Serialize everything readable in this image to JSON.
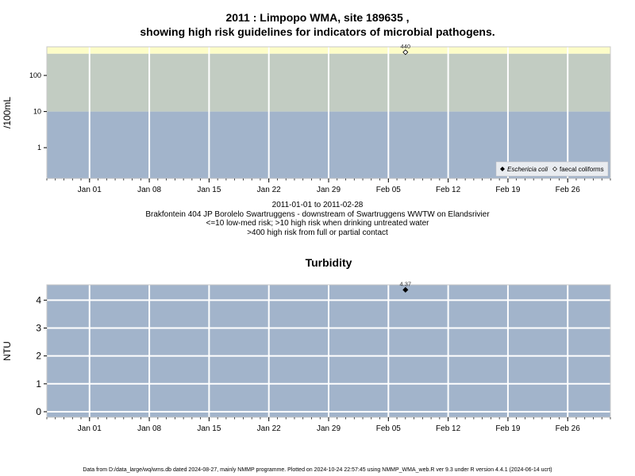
{
  "figure": {
    "title_line1": "2011 : Limpopo WMA, site 189635 ,",
    "title_line2": "showing high risk guidelines for indicators of microbial pathogens.",
    "subtitle_lines": [
      "2011-01-01 to 2011-02-28",
      "Brakfontein 404 JP Borolelo Swartruggens - downstream of Swartruggens WWTW on Elandsrivier",
      "<=10 low-med risk; >10 high risk when drinking untreated water",
      ">400 high risk from full or partial contact"
    ],
    "footer": "Data from D:/data_large/wq/wms.db dated 2024-08-27, mainly NMMP programme. Plotted on 2024-10-24 22:57:45 using NMMP_WMA_web.R ver 9.3 under R version 4.4.1 (2024-06-14 ucrt)"
  },
  "colors": {
    "low_risk_band": "#a2b4cb",
    "high_risk_band": "#c2ccc2",
    "contact_risk_band": "#fdfdc8",
    "turbidity_background": "#a2b4cb",
    "gridline": "#ffffff"
  },
  "chart_data": [
    {
      "type": "scatter",
      "title": "",
      "ylabel": "/100mL",
      "y_scale": "log",
      "ylim": [
        0.14,
        620
      ],
      "yticks": [
        1,
        10,
        100
      ],
      "ytick_labels": [
        "1",
        "10",
        "100"
      ],
      "xlim": [
        "2010-12-27",
        "2011-03-03"
      ],
      "xtick_dates": [
        "2011-01-01",
        "2011-01-08",
        "2011-01-15",
        "2011-01-22",
        "2011-01-29",
        "2011-02-05",
        "2011-02-12",
        "2011-02-19",
        "2011-02-26"
      ],
      "xtick_labels": [
        "Jan 01",
        "Jan 08",
        "Jan 15",
        "Jan 22",
        "Jan 29",
        "Feb 05",
        "Feb 12",
        "Feb 19",
        "Feb 26"
      ],
      "grid": true,
      "risk_bands": [
        {
          "from": 0.14,
          "to": 10,
          "color": "#a2b4cb"
        },
        {
          "from": 10,
          "to": 400,
          "color": "#c2ccc2"
        },
        {
          "from": 400,
          "to": 620,
          "color": "#fdfdc8"
        }
      ],
      "legend_position": "bottom-right",
      "series": [
        {
          "name": "Eschericia coli",
          "marker": "filled-diamond",
          "points": []
        },
        {
          "name": "faecal coliforms",
          "marker": "open-diamond",
          "points": [
            {
              "x": "2011-02-07",
              "y": 440,
              "label": "440"
            }
          ]
        }
      ]
    },
    {
      "type": "scatter",
      "title": "Turbidity",
      "ylabel": "NTU",
      "y_scale": "linear",
      "ylim": [
        -0.2,
        4.55
      ],
      "yticks": [
        0,
        1,
        2,
        3,
        4
      ],
      "ytick_labels": [
        "0",
        "1",
        "2",
        "3",
        "4"
      ],
      "xlim": [
        "2010-12-27",
        "2011-03-03"
      ],
      "xtick_dates": [
        "2011-01-01",
        "2011-01-08",
        "2011-01-15",
        "2011-01-22",
        "2011-01-29",
        "2011-02-05",
        "2011-02-12",
        "2011-02-19",
        "2011-02-26"
      ],
      "xtick_labels": [
        "Jan 01",
        "Jan 08",
        "Jan 15",
        "Jan 22",
        "Jan 29",
        "Feb 05",
        "Feb 12",
        "Feb 19",
        "Feb 26"
      ],
      "grid": true,
      "series": [
        {
          "marker": "filled-diamond",
          "points": [
            {
              "x": "2011-02-07",
              "y": 4.37,
              "label": "4.37"
            }
          ]
        }
      ]
    }
  ]
}
